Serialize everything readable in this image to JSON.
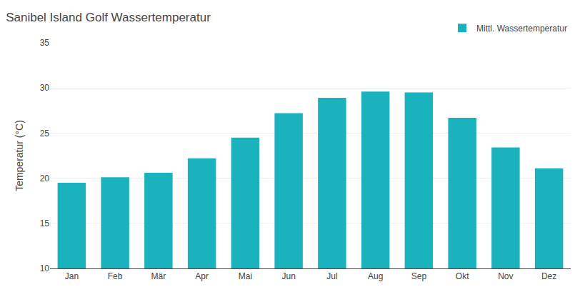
{
  "chart_data": {
    "type": "bar",
    "title": "Sanibel Island Golf Wassertemperatur",
    "categories": [
      "Jan",
      "Feb",
      "Mär",
      "Apr",
      "Mai",
      "Jun",
      "Jul",
      "Aug",
      "Sep",
      "Okt",
      "Nov",
      "Dez"
    ],
    "series": [
      {
        "name": "Mittl. Wassertemperatur",
        "color": "#19B2BD",
        "values": [
          19.5,
          20.1,
          20.6,
          22.2,
          24.5,
          27.2,
          28.9,
          29.6,
          29.5,
          26.7,
          23.4,
          21.1
        ]
      }
    ],
    "ylabel": "Temperatur (°C)",
    "ylim": [
      10,
      35
    ],
    "yticks": [
      10,
      15,
      20,
      25,
      30,
      35
    ],
    "grid": true,
    "legend": "upper right"
  }
}
